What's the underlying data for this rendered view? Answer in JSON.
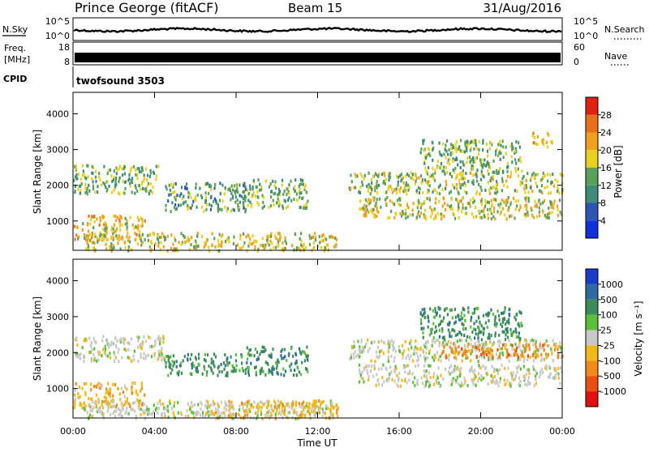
{
  "header": {
    "station": "Prince George (fitACF)",
    "beam": "Beam 15",
    "date": "31/Aug/2016"
  },
  "panels": {
    "noise": {
      "left_label": "N.Sky",
      "right_label": "N.Search",
      "left_top_tick": "10^5",
      "left_bottom_tick": "10^0",
      "right_top_tick": "10^5",
      "right_bottom_tick": "10^0"
    },
    "freq": {
      "left_label_1": "Freq.",
      "left_label_2": "[MHz]",
      "left_top_tick": "18",
      "left_bottom_tick": "8",
      "right_label": "Nave",
      "right_top_tick": "60",
      "right_bottom_tick": "0"
    },
    "cpid": {
      "label": "CPID",
      "program": "twofsound 3503"
    }
  },
  "chart_data": [
    {
      "type": "heatmap",
      "name": "power",
      "ylabel": "Slant Range [km]",
      "ylim": [
        180,
        4600
      ],
      "yticks": [
        1000,
        2000,
        3000,
        4000
      ],
      "xlim": [
        0,
        24
      ],
      "xticks": [
        "00:00",
        "04:00",
        "08:00",
        "12:00",
        "16:00",
        "20:00",
        "00:00"
      ],
      "colorbar": {
        "label": "Power [dB]",
        "range": [
          0,
          32
        ],
        "ticks": [
          "4",
          "8",
          "12",
          "16",
          "20",
          "24",
          "28"
        ],
        "colors": [
          "#1030e0",
          "#2e56b0",
          "#3f8a78",
          "#5aa05a",
          "#e8d020",
          "#f0a020",
          "#e87018",
          "#e02010"
        ]
      },
      "bands": [
        {
          "t0": 0.0,
          "t1": 4.2,
          "r0": 1800,
          "r1": 2600,
          "level": 12
        },
        {
          "t0": 0.0,
          "t1": 3.5,
          "r0": 500,
          "r1": 1200,
          "level": 18
        },
        {
          "t0": 0.5,
          "t1": 13.0,
          "r0": 200,
          "r1": 700,
          "level": 16
        },
        {
          "t0": 4.5,
          "t1": 8.5,
          "r0": 1300,
          "r1": 2100,
          "level": 10
        },
        {
          "t0": 8.5,
          "t1": 11.5,
          "r0": 1400,
          "r1": 2200,
          "level": 12
        },
        {
          "t0": 13.5,
          "t1": 24.0,
          "r0": 1800,
          "r1": 2400,
          "level": 14
        },
        {
          "t0": 14.0,
          "t1": 24.0,
          "r0": 1100,
          "r1": 1700,
          "level": 16
        },
        {
          "t0": 17.0,
          "t1": 22.0,
          "r0": 2400,
          "r1": 3300,
          "level": 12
        },
        {
          "t0": 22.5,
          "t1": 23.5,
          "r0": 3100,
          "r1": 3500,
          "level": 20
        }
      ]
    },
    {
      "type": "heatmap",
      "name": "velocity",
      "ylabel": "Slant Range [km]",
      "ylim": [
        180,
        4600
      ],
      "yticks": [
        1000,
        2000,
        3000,
        4000
      ],
      "xlim": [
        0,
        24
      ],
      "xticks": [
        "00:00",
        "04:00",
        "08:00",
        "12:00",
        "16:00",
        "20:00",
        "00:00"
      ],
      "xlabel": "Time UT",
      "colorbar": {
        "label": "Velocity [m s⁻¹]",
        "ticks": [
          "1000",
          "500",
          "100",
          "25",
          "-25",
          "-100",
          "-500",
          "-1000"
        ],
        "colors": [
          "#1a3cc8",
          "#2e6aa0",
          "#3c8a5a",
          "#5cbf3c",
          "#c8c8c8",
          "#f0b818",
          "#f08a18",
          "#e85010",
          "#e01010"
        ]
      },
      "bands": [
        {
          "t0": 0.0,
          "t1": 4.5,
          "r0": 1800,
          "r1": 2500,
          "level": 4
        },
        {
          "t0": 0.0,
          "t1": 3.5,
          "r0": 500,
          "r1": 1200,
          "level": 5
        },
        {
          "t0": 0.5,
          "t1": 13.0,
          "r0": 200,
          "r1": 700,
          "level": 4
        },
        {
          "t0": 6.5,
          "t1": 13.0,
          "r0": 200,
          "r1": 700,
          "level": 5
        },
        {
          "t0": 4.5,
          "t1": 8.5,
          "r0": 1400,
          "r1": 2000,
          "level": 2
        },
        {
          "t0": 8.5,
          "t1": 11.5,
          "r0": 1400,
          "r1": 2200,
          "level": 2
        },
        {
          "t0": 13.5,
          "t1": 24.0,
          "r0": 1800,
          "r1": 2400,
          "level": 4
        },
        {
          "t0": 14.0,
          "t1": 24.0,
          "r0": 1100,
          "r1": 1700,
          "level": 4
        },
        {
          "t0": 17.0,
          "t1": 22.0,
          "r0": 2400,
          "r1": 3300,
          "level": 2
        },
        {
          "t0": 18.0,
          "t1": 24.0,
          "r0": 1900,
          "r1": 2300,
          "level": 6
        }
      ]
    }
  ]
}
